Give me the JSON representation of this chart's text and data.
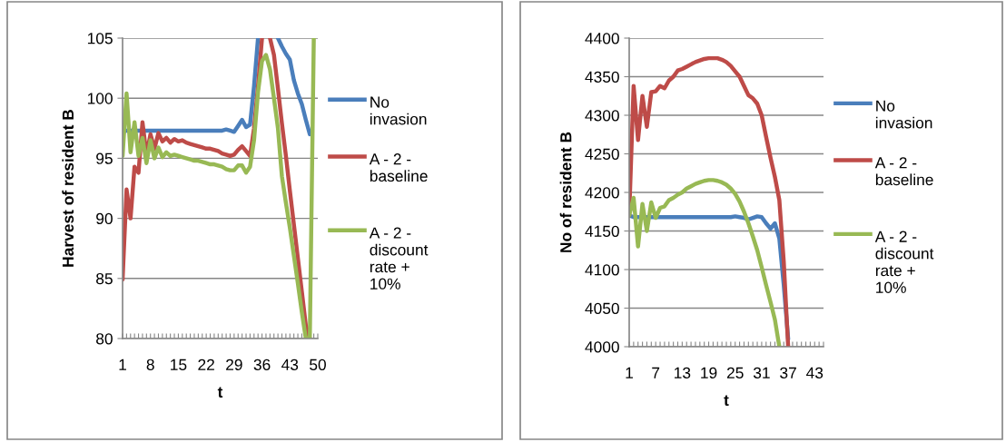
{
  "chart_data": [
    {
      "type": "line",
      "xlabel": "t",
      "ylabel": "Harvest of resident B",
      "grid": "y",
      "legend": "right",
      "ylim": [
        80,
        105
      ],
      "yticks": [
        80,
        85,
        90,
        95,
        100,
        105
      ],
      "categories": [
        "1",
        null,
        null,
        null,
        null,
        null,
        null,
        "8",
        null,
        null,
        null,
        null,
        null,
        null,
        "15",
        null,
        null,
        null,
        null,
        null,
        null,
        "22",
        null,
        null,
        null,
        null,
        null,
        null,
        "29",
        null,
        null,
        null,
        null,
        null,
        null,
        "36",
        null,
        null,
        null,
        null,
        null,
        null,
        "43",
        null,
        null,
        null,
        null,
        null,
        null,
        "50"
      ],
      "series": [
        {
          "name": "No invasion",
          "color": "#4a7ebb",
          "values": [
            97.2,
            97.3,
            97.3,
            97.3,
            97.3,
            97.3,
            97.3,
            97.3,
            97.3,
            97.3,
            97.3,
            97.3,
            97.3,
            97.3,
            97.3,
            97.3,
            97.3,
            97.3,
            97.3,
            97.3,
            97.3,
            97.3,
            97.3,
            97.3,
            97.3,
            97.3,
            97.4,
            97.3,
            97.2,
            97.7,
            98.2,
            97.6,
            97.8,
            101,
            105,
            null,
            null,
            null,
            null,
            105,
            104.3,
            103.7,
            103.2,
            101.5,
            100.4,
            99.5,
            98.2,
            97,
            null,
            null
          ]
        },
        {
          "name": "A - 2 - baseline",
          "color": "#be4b48",
          "values": [
            84.9,
            92.4,
            90,
            94.3,
            93.8,
            98,
            95.3,
            97,
            95.8,
            97.1,
            96.4,
            96.7,
            96.3,
            96.6,
            96.4,
            96.5,
            96.3,
            96.2,
            96.1,
            96,
            95.9,
            95.8,
            95.8,
            95.7,
            95.6,
            95.4,
            95.3,
            95.2,
            95.3,
            95.7,
            96,
            95.6,
            95.2,
            97.5,
            101,
            105,
            null,
            105,
            103.6,
            100.8,
            97.9,
            95.2,
            92.3,
            89.5,
            86.7,
            83.9,
            81.1,
            80,
            null,
            null
          ]
        },
        {
          "name": "A - 2 - discount rate + 10%",
          "color": "#98b954",
          "values": [
            95.2,
            100.4,
            95.5,
            98,
            95.2,
            96.7,
            94.6,
            96.5,
            95,
            95.9,
            95.1,
            95.5,
            95.2,
            95.3,
            95.2,
            95.1,
            95,
            94.9,
            94.8,
            94.8,
            94.7,
            94.6,
            94.5,
            94.5,
            94.4,
            94.3,
            94.1,
            94,
            94,
            94.4,
            94.4,
            93.8,
            94.3,
            96.5,
            100.5,
            103.1,
            103.6,
            102.4,
            100,
            97.5,
            93.5,
            91.3,
            89.2,
            86.9,
            84.6,
            82.2,
            80,
            80,
            105,
            null
          ]
        }
      ]
    },
    {
      "type": "line",
      "xlabel": "t",
      "ylabel": "No of resident B",
      "grid": "y",
      "legend": "right",
      "ylim": [
        4000,
        4400
      ],
      "yticks": [
        4000,
        4050,
        4100,
        4150,
        4200,
        4250,
        4300,
        4350,
        4400
      ],
      "categories": [
        "1",
        null,
        null,
        null,
        null,
        null,
        "7",
        null,
        null,
        null,
        null,
        null,
        "13",
        null,
        null,
        null,
        null,
        null,
        "19",
        null,
        null,
        null,
        null,
        null,
        "25",
        null,
        null,
        null,
        null,
        null,
        "31",
        null,
        null,
        null,
        null,
        null,
        "37",
        null,
        null,
        null,
        null,
        null,
        "43",
        null,
        null
      ],
      "series": [
        {
          "name": "No invasion",
          "color": "#4a7ebb",
          "values": [
            4170,
            4168,
            4168,
            4168,
            4168,
            4168,
            4168,
            4168,
            4168,
            4168,
            4168,
            4168,
            4168,
            4168,
            4168,
            4168,
            4168,
            4168,
            4168,
            4168,
            4168,
            4168,
            4168,
            4168,
            4169,
            4168,
            4167,
            4165,
            4167,
            4169,
            4168,
            4160,
            4153,
            4160,
            4140,
            4080,
            4010,
            null,
            null,
            null,
            null,
            null,
            null,
            null,
            null
          ]
        },
        {
          "name": "A - 2 - baseline",
          "color": "#be4b48",
          "values": [
            4170,
            4338,
            4268,
            4325,
            4285,
            4330,
            4331,
            4338,
            4335,
            4345,
            4350,
            4358,
            4360,
            4363,
            4366,
            4369,
            4371,
            4373,
            4374,
            4374,
            4374,
            4372,
            4369,
            4364,
            4357,
            4350,
            4338,
            4326,
            4322,
            4315,
            4300,
            4272,
            4245,
            4220,
            4190,
            4110,
            4000,
            null,
            null,
            null,
            null,
            null,
            null,
            null,
            null
          ]
        },
        {
          "name": "A - 2 - discount rate + 10%",
          "color": "#98b954",
          "values": [
            4170,
            4193,
            4130,
            4185,
            4150,
            4187,
            4167,
            4180,
            4182,
            4190,
            4193,
            4197,
            4200,
            4205,
            4208,
            4211,
            4213,
            4215,
            4216,
            4216,
            4215,
            4213,
            4210,
            4205,
            4198,
            4188,
            4175,
            4160,
            4143,
            4125,
            4103,
            4080,
            4058,
            4035,
            4000,
            null,
            null,
            null,
            null,
            null,
            null,
            null,
            null,
            null,
            null
          ]
        }
      ]
    }
  ]
}
